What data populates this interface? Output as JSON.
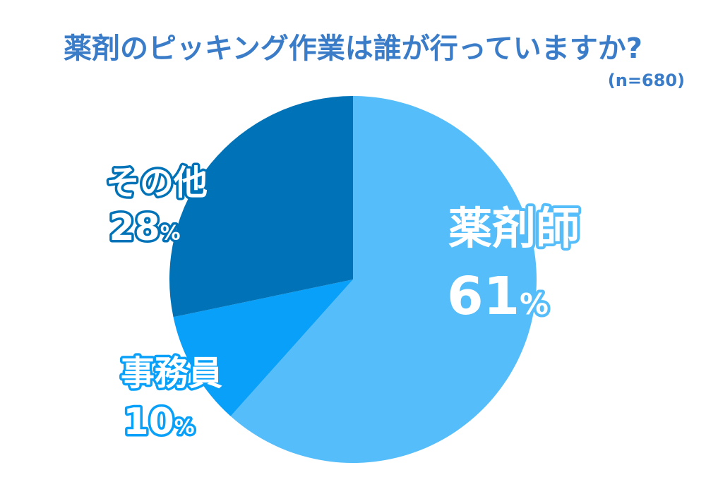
{
  "chart_data": {
    "type": "pie",
    "title": "薬剤のピッキング作業は誰が行っていますか?",
    "subtitle": "(n=680)",
    "slices": [
      {
        "label": "薬剤師",
        "value": 61,
        "value_label": "61",
        "color": "#55bdf9",
        "text_fill": "#ffffff",
        "text_stroke": "#55bdf9"
      },
      {
        "label": "事務員",
        "value": 10,
        "value_label": "10",
        "color": "#08a0f8",
        "text_fill": "#ffffff",
        "text_stroke": "#08a0f8"
      },
      {
        "label": "その他",
        "value": 28,
        "value_label": "28",
        "color": "#0073b8",
        "text_fill": "#ffffff",
        "text_stroke": "#0073b8"
      }
    ],
    "unit": "%",
    "start": "top",
    "direction": "clockwise",
    "title_color": "#3a7cc8",
    "legend": "none"
  }
}
